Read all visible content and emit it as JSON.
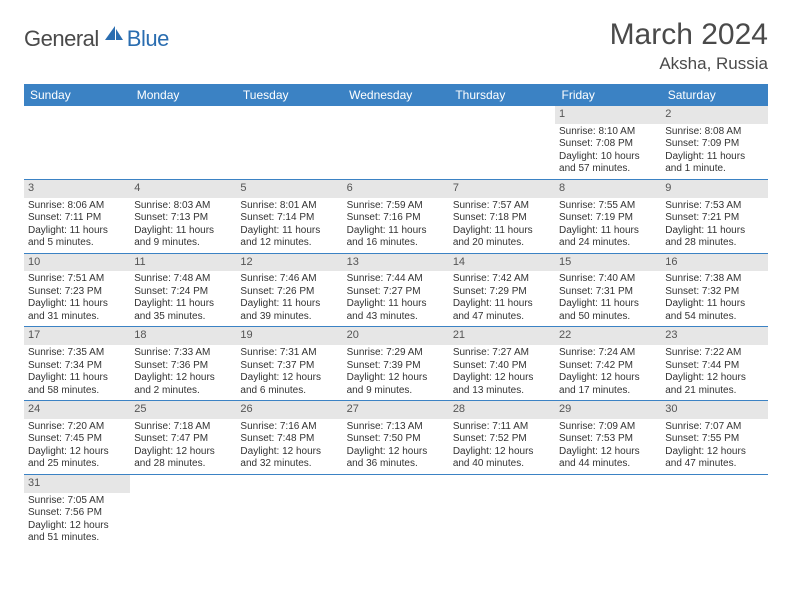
{
  "logo": {
    "part1": "General",
    "part2": "Blue"
  },
  "title": "March 2024",
  "location": "Aksha, Russia",
  "colors": {
    "header_bg": "#3b82c4",
    "header_fg": "#ffffff",
    "daynum_bg": "#e6e6e6",
    "grid_line": "#3b82c4",
    "text": "#333333",
    "logo_gray": "#4a4a4a",
    "logo_blue": "#2a6db0"
  },
  "typography": {
    "title_fontsize": 30,
    "location_fontsize": 17,
    "weekday_fontsize": 12,
    "daynum_fontsize": 11,
    "cell_fontsize": 10
  },
  "weekdays": [
    "Sunday",
    "Monday",
    "Tuesday",
    "Wednesday",
    "Thursday",
    "Friday",
    "Saturday"
  ],
  "weeks": [
    [
      null,
      null,
      null,
      null,
      null,
      {
        "n": "1",
        "sr": "Sunrise: 8:10 AM",
        "ss": "Sunset: 7:08 PM",
        "d1": "Daylight: 10 hours",
        "d2": "and 57 minutes."
      },
      {
        "n": "2",
        "sr": "Sunrise: 8:08 AM",
        "ss": "Sunset: 7:09 PM",
        "d1": "Daylight: 11 hours",
        "d2": "and 1 minute."
      }
    ],
    [
      {
        "n": "3",
        "sr": "Sunrise: 8:06 AM",
        "ss": "Sunset: 7:11 PM",
        "d1": "Daylight: 11 hours",
        "d2": "and 5 minutes."
      },
      {
        "n": "4",
        "sr": "Sunrise: 8:03 AM",
        "ss": "Sunset: 7:13 PM",
        "d1": "Daylight: 11 hours",
        "d2": "and 9 minutes."
      },
      {
        "n": "5",
        "sr": "Sunrise: 8:01 AM",
        "ss": "Sunset: 7:14 PM",
        "d1": "Daylight: 11 hours",
        "d2": "and 12 minutes."
      },
      {
        "n": "6",
        "sr": "Sunrise: 7:59 AM",
        "ss": "Sunset: 7:16 PM",
        "d1": "Daylight: 11 hours",
        "d2": "and 16 minutes."
      },
      {
        "n": "7",
        "sr": "Sunrise: 7:57 AM",
        "ss": "Sunset: 7:18 PM",
        "d1": "Daylight: 11 hours",
        "d2": "and 20 minutes."
      },
      {
        "n": "8",
        "sr": "Sunrise: 7:55 AM",
        "ss": "Sunset: 7:19 PM",
        "d1": "Daylight: 11 hours",
        "d2": "and 24 minutes."
      },
      {
        "n": "9",
        "sr": "Sunrise: 7:53 AM",
        "ss": "Sunset: 7:21 PM",
        "d1": "Daylight: 11 hours",
        "d2": "and 28 minutes."
      }
    ],
    [
      {
        "n": "10",
        "sr": "Sunrise: 7:51 AM",
        "ss": "Sunset: 7:23 PM",
        "d1": "Daylight: 11 hours",
        "d2": "and 31 minutes."
      },
      {
        "n": "11",
        "sr": "Sunrise: 7:48 AM",
        "ss": "Sunset: 7:24 PM",
        "d1": "Daylight: 11 hours",
        "d2": "and 35 minutes."
      },
      {
        "n": "12",
        "sr": "Sunrise: 7:46 AM",
        "ss": "Sunset: 7:26 PM",
        "d1": "Daylight: 11 hours",
        "d2": "and 39 minutes."
      },
      {
        "n": "13",
        "sr": "Sunrise: 7:44 AM",
        "ss": "Sunset: 7:27 PM",
        "d1": "Daylight: 11 hours",
        "d2": "and 43 minutes."
      },
      {
        "n": "14",
        "sr": "Sunrise: 7:42 AM",
        "ss": "Sunset: 7:29 PM",
        "d1": "Daylight: 11 hours",
        "d2": "and 47 minutes."
      },
      {
        "n": "15",
        "sr": "Sunrise: 7:40 AM",
        "ss": "Sunset: 7:31 PM",
        "d1": "Daylight: 11 hours",
        "d2": "and 50 minutes."
      },
      {
        "n": "16",
        "sr": "Sunrise: 7:38 AM",
        "ss": "Sunset: 7:32 PM",
        "d1": "Daylight: 11 hours",
        "d2": "and 54 minutes."
      }
    ],
    [
      {
        "n": "17",
        "sr": "Sunrise: 7:35 AM",
        "ss": "Sunset: 7:34 PM",
        "d1": "Daylight: 11 hours",
        "d2": "and 58 minutes."
      },
      {
        "n": "18",
        "sr": "Sunrise: 7:33 AM",
        "ss": "Sunset: 7:36 PM",
        "d1": "Daylight: 12 hours",
        "d2": "and 2 minutes."
      },
      {
        "n": "19",
        "sr": "Sunrise: 7:31 AM",
        "ss": "Sunset: 7:37 PM",
        "d1": "Daylight: 12 hours",
        "d2": "and 6 minutes."
      },
      {
        "n": "20",
        "sr": "Sunrise: 7:29 AM",
        "ss": "Sunset: 7:39 PM",
        "d1": "Daylight: 12 hours",
        "d2": "and 9 minutes."
      },
      {
        "n": "21",
        "sr": "Sunrise: 7:27 AM",
        "ss": "Sunset: 7:40 PM",
        "d1": "Daylight: 12 hours",
        "d2": "and 13 minutes."
      },
      {
        "n": "22",
        "sr": "Sunrise: 7:24 AM",
        "ss": "Sunset: 7:42 PM",
        "d1": "Daylight: 12 hours",
        "d2": "and 17 minutes."
      },
      {
        "n": "23",
        "sr": "Sunrise: 7:22 AM",
        "ss": "Sunset: 7:44 PM",
        "d1": "Daylight: 12 hours",
        "d2": "and 21 minutes."
      }
    ],
    [
      {
        "n": "24",
        "sr": "Sunrise: 7:20 AM",
        "ss": "Sunset: 7:45 PM",
        "d1": "Daylight: 12 hours",
        "d2": "and 25 minutes."
      },
      {
        "n": "25",
        "sr": "Sunrise: 7:18 AM",
        "ss": "Sunset: 7:47 PM",
        "d1": "Daylight: 12 hours",
        "d2": "and 28 minutes."
      },
      {
        "n": "26",
        "sr": "Sunrise: 7:16 AM",
        "ss": "Sunset: 7:48 PM",
        "d1": "Daylight: 12 hours",
        "d2": "and 32 minutes."
      },
      {
        "n": "27",
        "sr": "Sunrise: 7:13 AM",
        "ss": "Sunset: 7:50 PM",
        "d1": "Daylight: 12 hours",
        "d2": "and 36 minutes."
      },
      {
        "n": "28",
        "sr": "Sunrise: 7:11 AM",
        "ss": "Sunset: 7:52 PM",
        "d1": "Daylight: 12 hours",
        "d2": "and 40 minutes."
      },
      {
        "n": "29",
        "sr": "Sunrise: 7:09 AM",
        "ss": "Sunset: 7:53 PM",
        "d1": "Daylight: 12 hours",
        "d2": "and 44 minutes."
      },
      {
        "n": "30",
        "sr": "Sunrise: 7:07 AM",
        "ss": "Sunset: 7:55 PM",
        "d1": "Daylight: 12 hours",
        "d2": "and 47 minutes."
      }
    ],
    [
      {
        "n": "31",
        "sr": "Sunrise: 7:05 AM",
        "ss": "Sunset: 7:56 PM",
        "d1": "Daylight: 12 hours",
        "d2": "and 51 minutes."
      },
      null,
      null,
      null,
      null,
      null,
      null
    ]
  ]
}
